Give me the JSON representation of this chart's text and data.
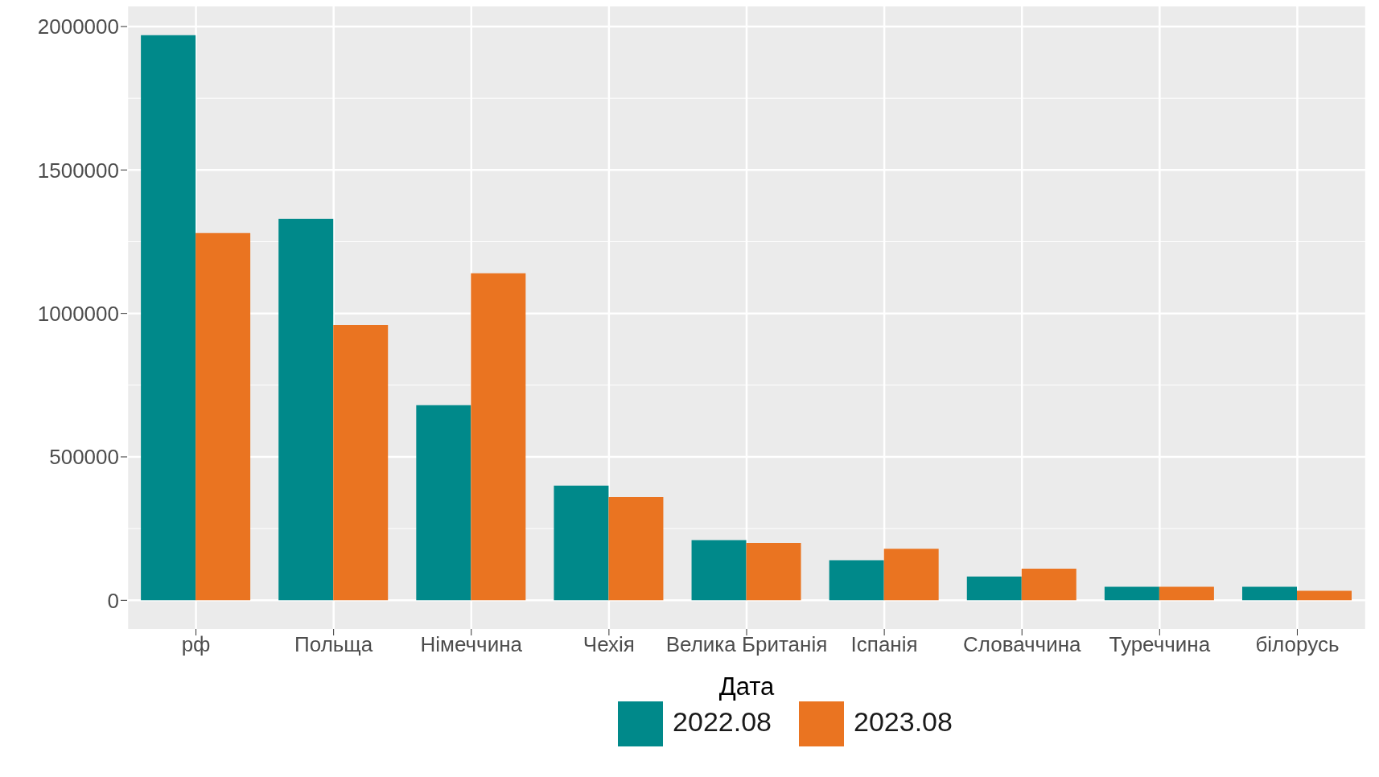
{
  "chart_data": {
    "type": "bar",
    "xlabel": "Дата",
    "categories": [
      "рф",
      "Польща",
      "Німеччина",
      "Чехія",
      "Велика Британія",
      "Іспанія",
      "Словаччина",
      "Туреччина",
      "білорусь"
    ],
    "series": [
      {
        "name": "2022.08",
        "color": "#00898a",
        "values": [
          1970000,
          1330000,
          680000,
          400000,
          210000,
          140000,
          83000,
          47000,
          47000
        ]
      },
      {
        "name": "2023.08",
        "color": "#ea7421",
        "values": [
          1280000,
          960000,
          1140000,
          360000,
          200000,
          180000,
          110000,
          47000,
          33000
        ]
      }
    ],
    "ylim": [
      -100000,
      2070000
    ],
    "yticks": [
      0,
      500000,
      1000000,
      1500000,
      2000000
    ],
    "grid": true,
    "legend": "bottom"
  }
}
